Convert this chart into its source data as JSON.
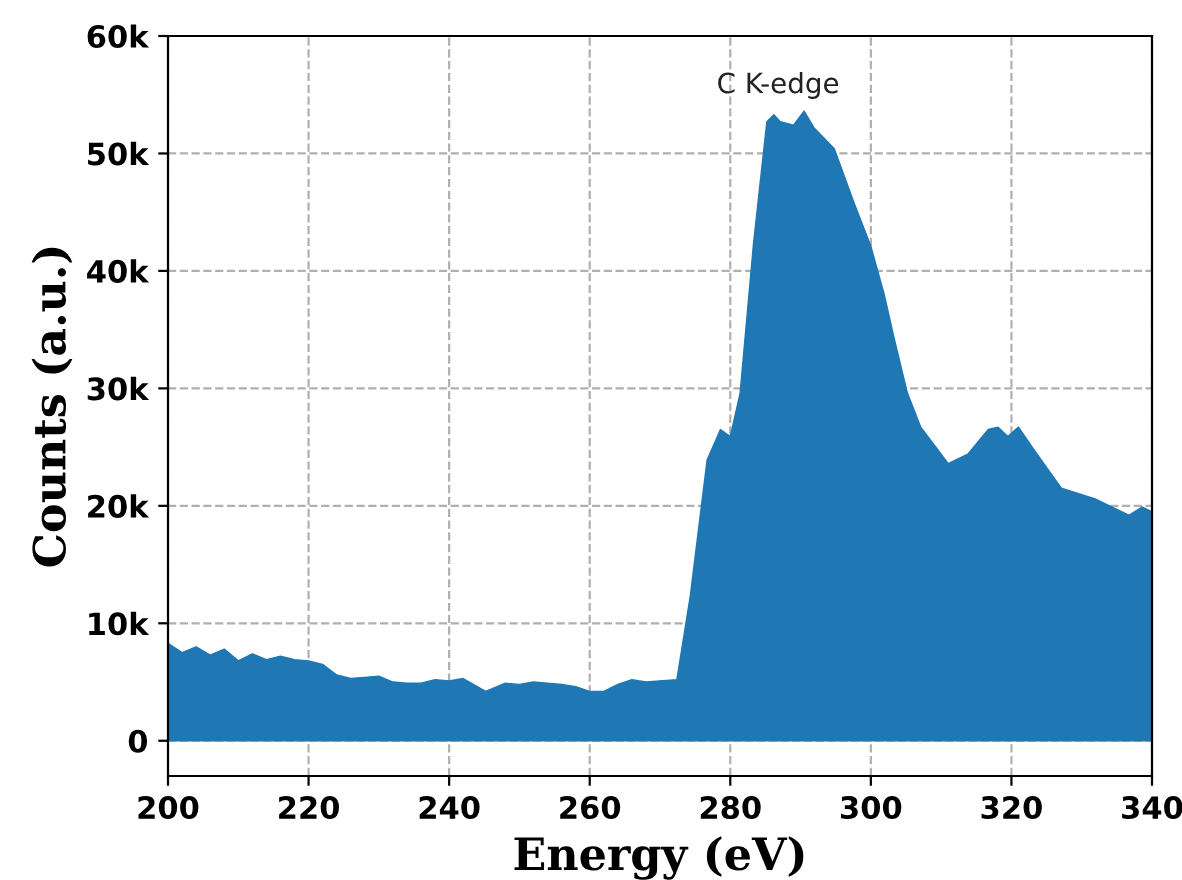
{
  "chart_data": {
    "type": "area",
    "xlabel": "Energy (eV)",
    "ylabel": "Counts (a.u.)",
    "xlim": [
      200,
      340
    ],
    "ylim": [
      -3000,
      60000
    ],
    "xticks": [
      200,
      220,
      240,
      260,
      280,
      300,
      320,
      340
    ],
    "yticks": [
      {
        "value": 0,
        "label": "0"
      },
      {
        "value": 10000,
        "label": "10k"
      },
      {
        "value": 20000,
        "label": "20k"
      },
      {
        "value": 30000,
        "label": "30k"
      },
      {
        "value": 40000,
        "label": "40k"
      },
      {
        "value": 50000,
        "label": "50k"
      },
      {
        "value": 60000,
        "label": "60k"
      }
    ],
    "grid": true,
    "annotations": [
      "C K-edge"
    ],
    "series": [
      {
        "color": "#1f77b4",
        "x": [
          200,
          202,
          204,
          206,
          208,
          210,
          212,
          214,
          216,
          218,
          220,
          222,
          224,
          226,
          228,
          230,
          232,
          234,
          236,
          238,
          240,
          242,
          244,
          245.2,
          248,
          250,
          252,
          254,
          256,
          258,
          260,
          262,
          264,
          266,
          268,
          270,
          272.4,
          274.3,
          276.7,
          278.6,
          280,
          281.4,
          283.3,
          285.2,
          286.2,
          287.1,
          289,
          290.5,
          291.9,
          294.8,
          297.6,
          300,
          301.9,
          303.3,
          305.2,
          307.1,
          310,
          311,
          313.8,
          316.7,
          318.1,
          319.5,
          321,
          323.3,
          327.1,
          331.9,
          336.7,
          338.6,
          340
        ],
        "values": [
          8300,
          7500,
          8000,
          7300,
          7800,
          6800,
          7400,
          6900,
          7200,
          6900,
          6800,
          6500,
          5600,
          5300,
          5400,
          5500,
          5000,
          4900,
          4900,
          5200,
          5100,
          5300,
          4600,
          4200,
          4900,
          4800,
          5000,
          4900,
          4800,
          4600,
          4200,
          4200,
          4800,
          5200,
          5000,
          5100,
          5200,
          12300,
          23900,
          26500,
          25900,
          29600,
          42300,
          52700,
          53300,
          52700,
          52400,
          53600,
          52200,
          50400,
          45800,
          42100,
          38000,
          34300,
          29600,
          26700,
          24400,
          23600,
          24400,
          26500,
          26700,
          25900,
          26700,
          24700,
          21500,
          20600,
          19200,
          19900,
          19500
        ]
      }
    ]
  }
}
